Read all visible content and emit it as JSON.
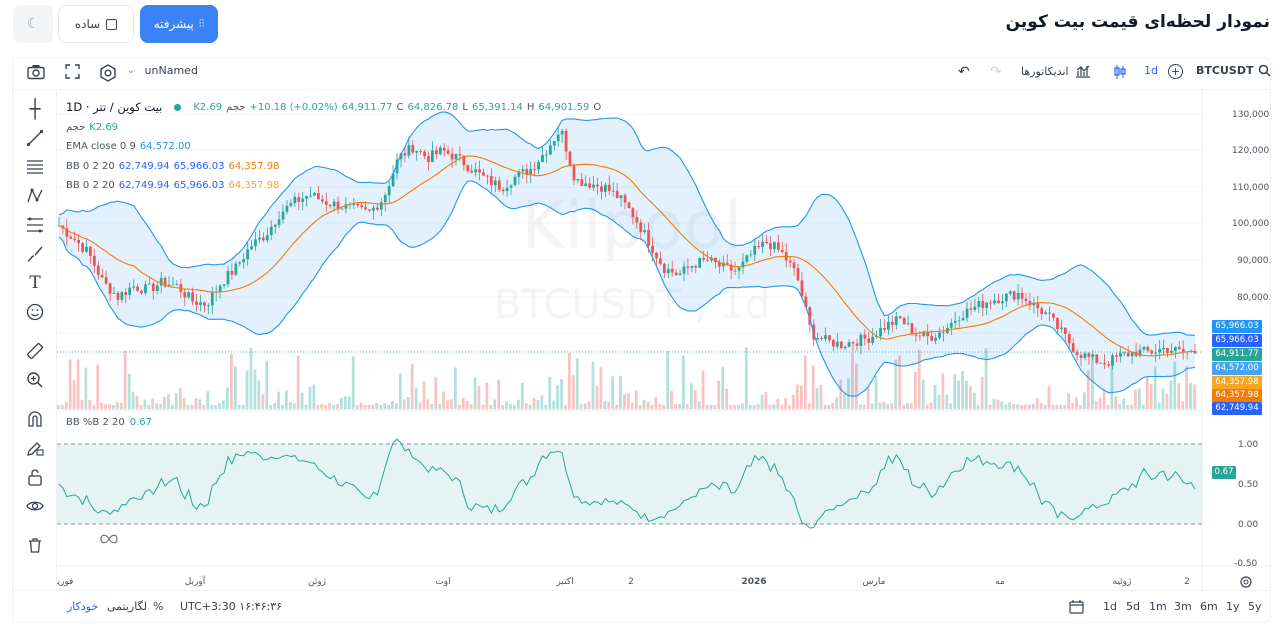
{
  "header": {
    "title": "نمودار لحظه‌ای قیمت بیت کوین",
    "mode_simple": "ساده",
    "mode_advanced": "پیشرفته"
  },
  "toolbar": {
    "symbol": "BTCUSDT",
    "interval": "1d",
    "indicators_label": "اندیکاتورها",
    "layout_name": "unNamed"
  },
  "legend": {
    "title": "بیت کوین / تتر · 1D",
    "volume_label": "حجم",
    "volume_value": "K2.69",
    "change": "+10.18 (+0.02%)",
    "ohlc": {
      "o_label": "O",
      "o": "64,901.59",
      "h_label": "H",
      "h": "65,391.14",
      "l_label": "L",
      "l": "64,826.78",
      "c_label": "C",
      "c": "64,911.77"
    },
    "rows": [
      {
        "name": "حجم",
        "values": [
          "K2.69"
        ],
        "colors": [
          "#26a69a"
        ]
      },
      {
        "name": "EMA close 0 9",
        "values": [
          "64,572.00"
        ],
        "colors": [
          "#2196f3"
        ]
      },
      {
        "name": "BB 0 2 20",
        "values": [
          "62,749.94",
          "65,966.03",
          "64,357.98"
        ],
        "colors": [
          "#2962ff",
          "#2962ff",
          "#f57c00"
        ]
      },
      {
        "name": "BB 0 2 20",
        "values": [
          "62,749.94",
          "65,966.03",
          "64,357.98"
        ],
        "colors": [
          "#2962ff",
          "#2962ff",
          "#f5a623"
        ]
      }
    ],
    "indicator": {
      "name": "BB %B 2 20",
      "value": "0.67"
    }
  },
  "price_axis": {
    "ticks": [
      "130,000.00",
      "120,000.00",
      "110,000.00",
      "100,000.00",
      "90,000.00",
      "80,000.00"
    ],
    "tags": [
      {
        "value": "65,966.03",
        "color": "#2196f3"
      },
      {
        "value": "65,966.03",
        "color": "#2962ff"
      },
      {
        "value": "64,911.77",
        "color": "#26a69a"
      },
      {
        "value": "64,572.00",
        "color": "#42a5f5"
      },
      {
        "value": "64,357.98",
        "color": "#f5a623"
      },
      {
        "value": "64,357.98",
        "color": "#f57c00"
      },
      {
        "value": "62,749.94",
        "color": "#2962ff"
      }
    ]
  },
  "indicator_axis": {
    "ticks": [
      "1.00",
      "0.50",
      "0.00",
      "-0.50"
    ],
    "tag": "0.67"
  },
  "time_axis": [
    "فوریه",
    "آوریل",
    "ژوئن",
    "اوت",
    "اکتبر",
    "2",
    "2026",
    "مارس",
    "مه",
    "ژوئیه",
    "2"
  ],
  "watermark": {
    "line1": "Kilpool",
    "line2": "BTCUSDT , 1d"
  },
  "bottom_bar": {
    "ranges": [
      "1d",
      "5d",
      "1m",
      "3m",
      "6m",
      "1y",
      "5y"
    ],
    "clock": "UTC+3:30 ۱۶:۴۶:۳۶",
    "percent": "%",
    "log": "لگاریتمی",
    "auto": "خودکار"
  },
  "chart_data": {
    "type": "candlestick",
    "symbol": "BTCUSDT",
    "interval": "1d",
    "ylim": [
      50000,
      135000
    ],
    "close_path": [
      99500,
      96000,
      92000,
      84000,
      80000,
      83000,
      82000,
      84000,
      83000,
      79000,
      78000,
      84000,
      88000,
      94000,
      97000,
      103000,
      106000,
      108000,
      106000,
      105000,
      104000,
      103000,
      107000,
      118000,
      121000,
      118000,
      120000,
      118000,
      115000,
      112000,
      110000,
      113000,
      115000,
      120000,
      126000,
      112000,
      111000,
      110000,
      107000,
      102000,
      95000,
      88000,
      86000,
      89000,
      90000,
      88000,
      87000,
      92000,
      95000,
      92000,
      86000,
      70000,
      68000,
      67000,
      68000,
      69000,
      72000,
      74000,
      70000,
      69000,
      71000,
      75000,
      77000,
      79000,
      80000,
      81000,
      78000,
      75000,
      70000,
      65000,
      63000,
      62000,
      64000,
      65000,
      65000,
      66000,
      65000,
      64912
    ],
    "bb_pct_b_range": [
      -0.5,
      1.0
    ]
  }
}
